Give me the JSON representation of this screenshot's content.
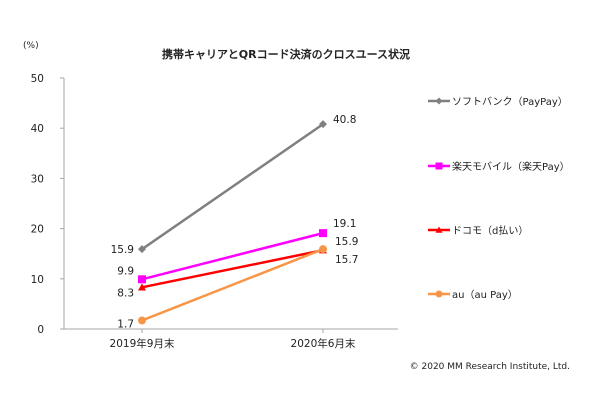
{
  "chart_data": {
    "type": "line",
    "title": "携帯キャリアとQRコード決済のクロスユース状況",
    "ylabel": "(%)",
    "ylim": [
      0,
      50
    ],
    "yticks": [
      0,
      10,
      20,
      30,
      40,
      50
    ],
    "categories": [
      "2019年9月末",
      "2020年6月末"
    ],
    "grid": false,
    "legend_position": "right",
    "series": [
      {
        "name": "ソフトバンク（PayPay）",
        "values": [
          15.9,
          40.8
        ],
        "color": "#808080",
        "marker": "diamond"
      },
      {
        "name": "楽天モバイル（楽天Pay）",
        "values": [
          9.9,
          19.1
        ],
        "color": "#ff00ff",
        "marker": "square"
      },
      {
        "name": "ドコモ（d払い）",
        "values": [
          8.3,
          15.7
        ],
        "color": "#ff0000",
        "marker": "triangle"
      },
      {
        "name": "au（au Pay）",
        "values": [
          1.7,
          15.9
        ],
        "color": "#f79646",
        "marker": "circle"
      }
    ]
  },
  "copyright": "© 2020 MM Research Institute, Ltd."
}
